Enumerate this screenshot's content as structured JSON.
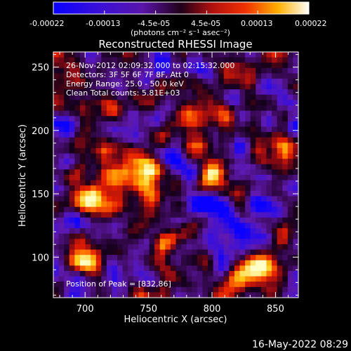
{
  "colorbar": {
    "tick_labels": [
      "-0.00022",
      "-0.00013",
      "-4.5e-05",
      "4.5e-05",
      "0.00013",
      "0.00022"
    ],
    "unit_label": "(photons cm⁻² s⁻¹ asec⁻²)"
  },
  "chart_data": {
    "type": "heatmap",
    "title": "Reconstructed RHESSI Image",
    "xlabel": "Heliocentric X (arcsec)",
    "ylabel": "Heliocentric Y (arcsec)",
    "xlim": [
      675,
      868
    ],
    "ylim": [
      68,
      262
    ],
    "x_ticks": [
      700,
      750,
      800,
      850
    ],
    "y_ticks": [
      100,
      150,
      200,
      250
    ],
    "colorbar_range": [
      -0.00022,
      0.00022
    ],
    "colormap": "blue-purple-red-yellow-white",
    "annotations": [
      "26-Nov-2012 02:09:32.000 to 02:15:32.000",
      "Detectors: 3F 5F 6F 7F 8F, Att 0",
      "Energy Range: 25.0 - 50.0 keV",
      "Clean    Total counts: 5.81E+03",
      "Position of Peak = [832,86]"
    ],
    "peak": [
      832,
      86
    ]
  },
  "footer": {
    "timestamp": "16-May-2022 08:29"
  }
}
